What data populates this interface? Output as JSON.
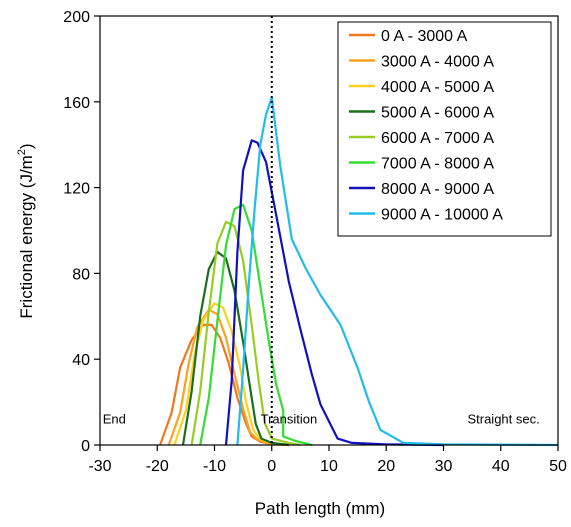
{
  "chart_data": {
    "type": "line",
    "xlabel": "Path length (mm)",
    "ylabel_main": "Frictional energy (J/m",
    "ylabel_sup": "2",
    "ylabel_close": ")",
    "xlim": [
      -30,
      50
    ],
    "ylim": [
      0,
      200
    ],
    "xticks": [
      "-30",
      "-20",
      "-10",
      "0",
      "10",
      "20",
      "30",
      "40",
      "50"
    ],
    "yticks": [
      "0",
      "40",
      "80",
      "120",
      "160",
      "200"
    ],
    "grid": false,
    "legend_position": "top-right",
    "reference_line_x": 0,
    "annotations": [
      {
        "text": "End",
        "x": -27.5,
        "y": 10
      },
      {
        "text": "Transition",
        "x": 3,
        "y": 10
      },
      {
        "text": "Straight sec.",
        "x": 40.5,
        "y": 10
      }
    ],
    "series": [
      {
        "name": "0 A - 3000 A",
        "color": "#f07820",
        "points": [
          [
            -19.5,
            0
          ],
          [
            -17.5,
            15
          ],
          [
            -16,
            36
          ],
          [
            -14,
            49
          ],
          [
            -12,
            56
          ],
          [
            -10.5,
            56
          ],
          [
            -9,
            50
          ],
          [
            -7.5,
            38
          ],
          [
            -6,
            22
          ],
          [
            -4.5,
            10
          ],
          [
            -3.5,
            4
          ],
          [
            -2,
            1.5
          ],
          [
            0,
            0.5
          ],
          [
            3,
            0
          ]
        ]
      },
      {
        "name": "3000 A - 4000 A",
        "color": "#ffa020",
        "points": [
          [
            -18,
            0
          ],
          [
            -16,
            15
          ],
          [
            -14.5,
            38
          ],
          [
            -13,
            55
          ],
          [
            -11,
            63
          ],
          [
            -9.5,
            61
          ],
          [
            -8,
            50
          ],
          [
            -6.5,
            33
          ],
          [
            -5,
            17
          ],
          [
            -3.8,
            6
          ],
          [
            -2.5,
            2.5
          ],
          [
            -1,
            1
          ],
          [
            2,
            0
          ]
        ]
      },
      {
        "name": "4000 A - 5000 A",
        "color": "#ffd020",
        "points": [
          [
            -17,
            0
          ],
          [
            -15,
            16
          ],
          [
            -13.5,
            42
          ],
          [
            -12,
            58
          ],
          [
            -10,
            66
          ],
          [
            -8.5,
            64
          ],
          [
            -7,
            53
          ],
          [
            -5.5,
            36
          ],
          [
            -4.5,
            20
          ],
          [
            -3.2,
            7
          ],
          [
            -2,
            2.5
          ],
          [
            0,
            1
          ],
          [
            3,
            0
          ]
        ]
      },
      {
        "name": "5000 A - 6000 A",
        "color": "#1a6e1a",
        "points": [
          [
            -15.5,
            0
          ],
          [
            -14,
            25
          ],
          [
            -12.5,
            60
          ],
          [
            -11,
            82
          ],
          [
            -9.5,
            90
          ],
          [
            -8,
            87
          ],
          [
            -6.5,
            72
          ],
          [
            -5,
            48
          ],
          [
            -3.8,
            27
          ],
          [
            -2.8,
            10
          ],
          [
            -1.8,
            3
          ],
          [
            0,
            1
          ],
          [
            3,
            0
          ]
        ]
      },
      {
        "name": "6000 A - 7000 A",
        "color": "#99cc22",
        "points": [
          [
            -14,
            0
          ],
          [
            -12.5,
            25
          ],
          [
            -11,
            62
          ],
          [
            -9.5,
            94
          ],
          [
            -8,
            104
          ],
          [
            -6.5,
            102
          ],
          [
            -5,
            86
          ],
          [
            -3.5,
            56
          ],
          [
            -2.3,
            30
          ],
          [
            -1.2,
            10
          ],
          [
            0,
            3
          ],
          [
            3,
            1
          ],
          [
            5,
            0
          ]
        ]
      },
      {
        "name": "7000 A - 8000 A",
        "color": "#33dd33",
        "points": [
          [
            -12.5,
            0
          ],
          [
            -11,
            22
          ],
          [
            -9.5,
            58
          ],
          [
            -8,
            93
          ],
          [
            -6.5,
            110
          ],
          [
            -5,
            112
          ],
          [
            -3.5,
            100
          ],
          [
            -2,
            74
          ],
          [
            -0.5,
            48
          ],
          [
            0.8,
            28
          ],
          [
            2,
            16
          ],
          [
            2,
            4
          ],
          [
            4,
            2
          ],
          [
            7,
            0
          ]
        ]
      },
      {
        "name": "8000 A - 9000 A",
        "color": "#1111bb",
        "points": [
          [
            -8,
            0
          ],
          [
            -7,
            30
          ],
          [
            -6,
            90
          ],
          [
            -5,
            128
          ],
          [
            -3.5,
            142
          ],
          [
            -2.5,
            141
          ],
          [
            -1,
            132
          ],
          [
            1,
            104
          ],
          [
            3,
            76
          ],
          [
            5,
            54
          ],
          [
            7,
            33
          ],
          [
            8.5,
            19
          ],
          [
            11.5,
            3
          ],
          [
            14,
            1
          ],
          [
            20,
            0.3
          ],
          [
            30,
            0
          ]
        ]
      },
      {
        "name": "9000 A - 10000 A",
        "color": "#22bbee",
        "points": [
          [
            -6,
            0
          ],
          [
            -5,
            35
          ],
          [
            -4,
            75
          ],
          [
            -3,
            110
          ],
          [
            -2,
            140
          ],
          [
            -1,
            154
          ],
          [
            0,
            162
          ],
          [
            1.5,
            130
          ],
          [
            3.5,
            96
          ],
          [
            6,
            82
          ],
          [
            8.5,
            70
          ],
          [
            12,
            56
          ],
          [
            15,
            36
          ],
          [
            17,
            20
          ],
          [
            19,
            7
          ],
          [
            23,
            1
          ],
          [
            30,
            0.3
          ],
          [
            50,
            0
          ]
        ]
      }
    ]
  }
}
